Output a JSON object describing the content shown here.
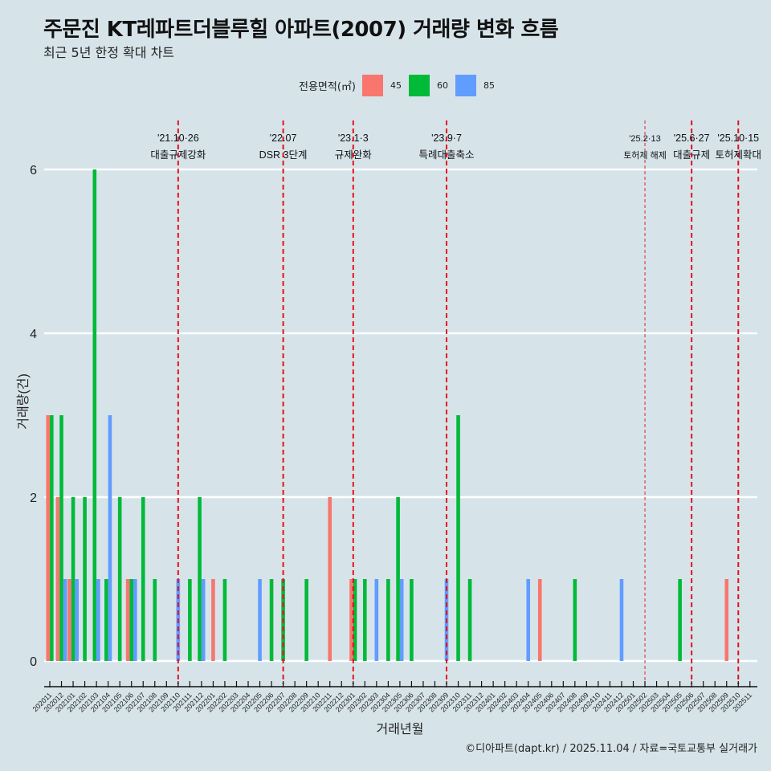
{
  "title": "주문진 KT레파트더블루힐 아파트(2007) 거래량 변화 흐름",
  "subtitle": "최근 5년 한정 확대 차트",
  "caption": "©디아파트(dapt.kr) / 2025.11.04 / 자료=국토교통부 실거래가",
  "legend": {
    "title": "전용면적(㎡)",
    "items": [
      {
        "label": "45",
        "color": "#f8766d"
      },
      {
        "label": "60",
        "color": "#00ba38"
      },
      {
        "label": "85",
        "color": "#619cff"
      }
    ]
  },
  "chart_data": {
    "type": "bar",
    "title": "주문진 KT레파트더블루힐 아파트(2007) 거래량 변화 흐름",
    "xlabel": "거래년월",
    "ylabel": "거래량(건)",
    "ylim": [
      0,
      6
    ],
    "yticks": [
      "0",
      "2",
      "4",
      "6"
    ],
    "grid": true,
    "legend_position": "top",
    "categories": [
      "202011",
      "202012",
      "202101",
      "202102",
      "202103",
      "202104",
      "202105",
      "202106",
      "202107",
      "202108",
      "202109",
      "202110",
      "202111",
      "202112",
      "202201",
      "202202",
      "202203",
      "202204",
      "202205",
      "202206",
      "202207",
      "202208",
      "202209",
      "202210",
      "202211",
      "202212",
      "202301",
      "202302",
      "202303",
      "202304",
      "202305",
      "202306",
      "202307",
      "202308",
      "202309",
      "202310",
      "202311",
      "202312",
      "202401",
      "202402",
      "202403",
      "202404",
      "202405",
      "202406",
      "202407",
      "202408",
      "202409",
      "202410",
      "202411",
      "202412",
      "202501",
      "202502",
      "202503",
      "202504",
      "202505",
      "202506",
      "202507",
      "202508",
      "202509",
      "202510",
      "202511"
    ],
    "series": [
      {
        "name": "45",
        "color": "#f8766d",
        "points": {
          "202011": 3,
          "202012": 2,
          "202101": 1,
          "202106": 1,
          "202201": 1,
          "202211": 2,
          "202301": 1,
          "202405": 1,
          "202509": 1
        }
      },
      {
        "name": "60",
        "color": "#00ba38",
        "points": {
          "202011": 3,
          "202012": 3,
          "202101": 2,
          "202102": 2,
          "202103": 6,
          "202104": 1,
          "202105": 2,
          "202106": 1,
          "202107": 2,
          "202108": 1,
          "202111": 1,
          "202112": 2,
          "202202": 1,
          "202206": 1,
          "202207": 1,
          "202209": 1,
          "202301": 1,
          "202302": 1,
          "202304": 1,
          "202305": 2,
          "202306": 1,
          "202310": 3,
          "202311": 1,
          "202408": 1,
          "202505": 1
        }
      },
      {
        "name": "85",
        "color": "#619cff",
        "points": {
          "202012": 1,
          "202101": 1,
          "202103": 1,
          "202104": 3,
          "202106": 1,
          "202110": 1,
          "202112": 1,
          "202205": 1,
          "202303": 1,
          "202305": 1,
          "202309": 1,
          "202404": 1,
          "202412": 1
        }
      }
    ],
    "events": [
      {
        "month": "202110",
        "date": "'21.10·26",
        "label": "대출규제강화",
        "minor": false
      },
      {
        "month": "202207",
        "date": "'22.07",
        "label": "DSR 3단계",
        "minor": false
      },
      {
        "month": "202301",
        "date": "'23.1·3",
        "label": "규제완화",
        "minor": false
      },
      {
        "month": "202309",
        "date": "'23.9·7",
        "label": "특례대출축소",
        "minor": false
      },
      {
        "month": "202502",
        "date": "'25.2·13",
        "label": "토허제 해제",
        "minor": true
      },
      {
        "month": "202506",
        "date": "'25.6·27",
        "label": "대출규제",
        "minor": false
      },
      {
        "month": "202510",
        "date": "'25.10·15",
        "label": "토허제확대",
        "minor": false
      }
    ]
  }
}
